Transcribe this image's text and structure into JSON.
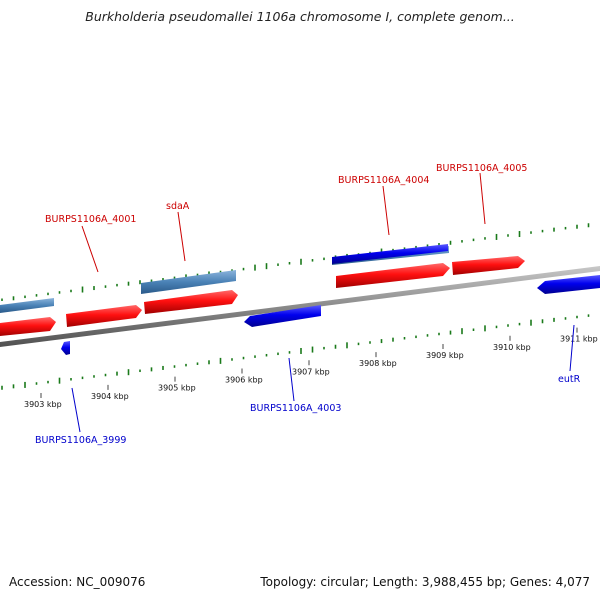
{
  "title": "Burkholderia pseudomallei 1106a chromosome I, complete genom...",
  "footer": {
    "accession": "Accession: NC_009076",
    "summary": "Topology: circular; Length: 3,988,455 bp; Genes: 4,077"
  },
  "colors": {
    "forward_gene": "#ff0000",
    "reverse_gene": "#0000ff",
    "rna_feature": "#4682b4",
    "gc_tick": "#1a7a1a",
    "backbone": "#808080",
    "forward_label": "#cc0000",
    "reverse_label": "#0000cc"
  },
  "scale_labels": [
    "3903 kbp",
    "3904 kbp",
    "3905 kbp",
    "3906 kbp",
    "3907 kbp",
    "3908 kbp",
    "3909 kbp",
    "3910 kbp",
    "3911 kbp"
  ],
  "gene_labels": {
    "forward": [
      "BURPS1106A_4001",
      "sdaA",
      "BURPS1106A_4004",
      "BURPS1106A_4005"
    ],
    "reverse": [
      "BURPS1106A_3999",
      "BURPS1106A_4003",
      "eutR"
    ]
  }
}
